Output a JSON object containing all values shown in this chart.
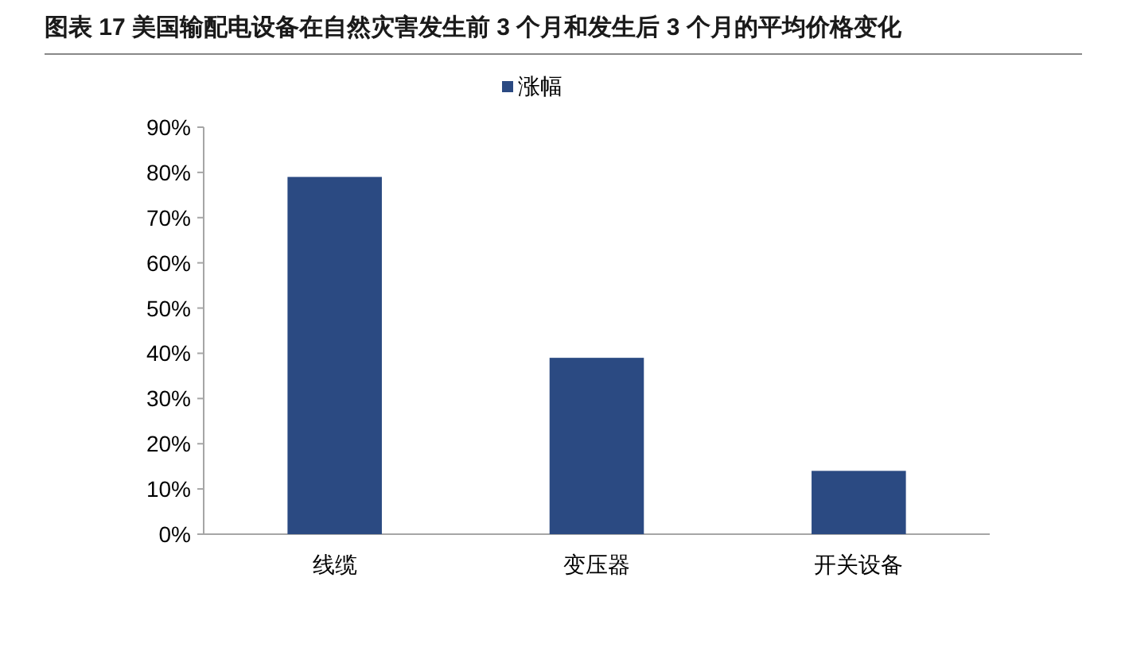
{
  "chart_data": {
    "type": "bar",
    "title": "图表 17 美国输配电设备在自然灾害发生前 3 个月和发生后 3 个月的平均价格变化",
    "categories": [
      "线缆",
      "变压器",
      "开关设备"
    ],
    "series": [
      {
        "name": "涨幅",
        "color": "#2b4a82",
        "values": [
          79,
          39,
          14
        ]
      }
    ],
    "ylim": [
      0,
      90
    ],
    "yticks": [
      {
        "value": 0,
        "label": "0%"
      },
      {
        "value": 10,
        "label": "10%"
      },
      {
        "value": 20,
        "label": "20%"
      },
      {
        "value": 30,
        "label": "30%"
      },
      {
        "value": 40,
        "label": "40%"
      },
      {
        "value": 50,
        "label": "50%"
      },
      {
        "value": 60,
        "label": "60%"
      },
      {
        "value": 70,
        "label": "70%"
      },
      {
        "value": 80,
        "label": "80%"
      },
      {
        "value": 90,
        "label": "90%"
      }
    ],
    "legend": "top"
  }
}
